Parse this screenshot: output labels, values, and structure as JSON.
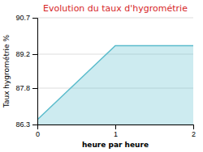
{
  "chart_data": {
    "type": "area",
    "title": "Evolution du taux d'hygrométrie",
    "x_label": "heure par heure",
    "y_label": "Taux hygrométrie %",
    "x": [
      0,
      1,
      2
    ],
    "values": [
      86.5,
      89.55,
      89.55
    ],
    "color": "#5bbccc",
    "xlim": [
      0,
      2
    ],
    "ylim": [
      86.3,
      90.7
    ],
    "xticks": [
      0,
      1,
      2
    ],
    "yticks": [
      86.3,
      87.8,
      89.2,
      90.7
    ],
    "grid": "y"
  }
}
